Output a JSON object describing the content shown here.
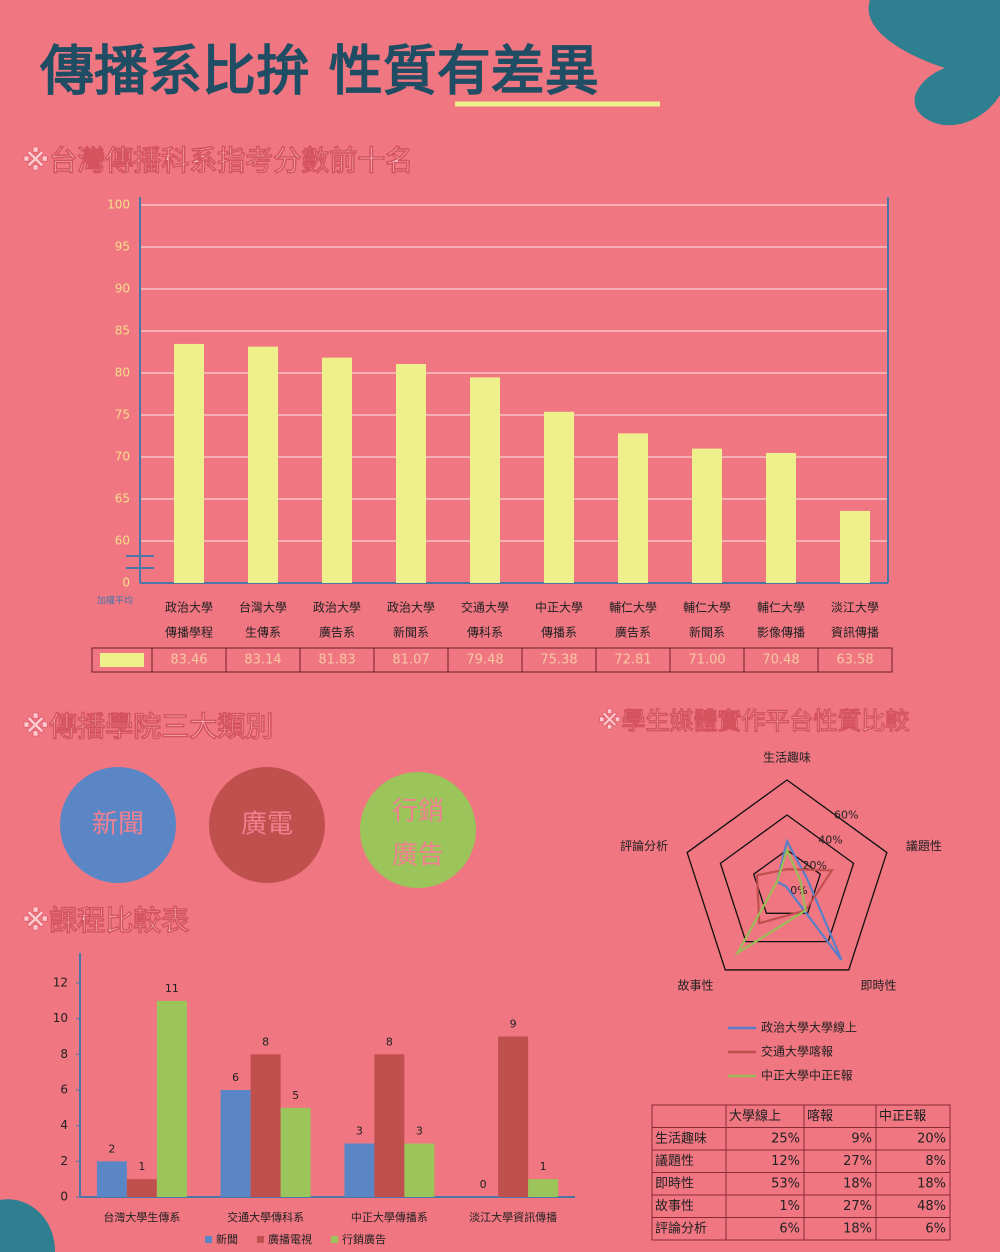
{
  "header": {
    "title": "傳播系比拚 性質有差異"
  },
  "sections": [
    "※台灣傳播科系指考分數前十名",
    "※傳播學院三大類別",
    "※課程比較表",
    "※學生媒體實作平台性質比較"
  ],
  "college_types": [
    [
      "新聞"
    ],
    [
      "廣電"
    ],
    [
      "行銷",
      "廣告"
    ]
  ],
  "chart_data": [
    {
      "type": "bar",
      "categories": [
        [
          "政治大學",
          "傳播學程"
        ],
        [
          "台灣大學",
          "生傳系"
        ],
        [
          "政治大學",
          "廣告系"
        ],
        [
          "政治大學",
          "新聞系"
        ],
        [
          "交通大學",
          "傳科系"
        ],
        [
          "中正大學",
          "傳播系"
        ],
        [
          "輔仁大學",
          "廣告系"
        ],
        [
          "輔仁大學",
          "新聞系"
        ],
        [
          "輔仁大學",
          "影像傳播"
        ],
        [
          "淡江大學",
          "資訊傳播"
        ]
      ],
      "values": [
        83.46,
        83.14,
        81.83,
        81.07,
        79.48,
        75.38,
        72.81,
        71,
        70.48,
        63.58
      ],
      "value_labels": [
        "83.46",
        "83.14",
        "81.83",
        "81.07",
        "79.48",
        "75.38",
        "72.81",
        "71.00",
        "70.48",
        "63.58"
      ],
      "color": "#eef08c",
      "ylim": [
        0,
        100
      ],
      "yticks": [
        0,
        60,
        65,
        70,
        75,
        80,
        85,
        90,
        95,
        100
      ],
      "axis_break": true,
      "grid": true,
      "y_axis_note": "加權平均"
    },
    {
      "type": "grouped_bar",
      "categories": [
        "台灣大學生傳系",
        "交通大學傳科系",
        "中正大學傳播系",
        "淡江大學資訊傳播"
      ],
      "series": [
        {
          "name": "新聞",
          "color": "#5b86c6",
          "values": [
            2,
            6,
            3,
            0
          ]
        },
        {
          "name": "廣播電視",
          "color": "#c0504d",
          "values": [
            1,
            8,
            8,
            9
          ]
        },
        {
          "name": "行銷廣告",
          "color": "#9bc45a",
          "values": [
            11,
            5,
            3,
            1
          ]
        }
      ],
      "ylim": [
        0,
        12
      ],
      "yticks": [
        0,
        2,
        4,
        6,
        8,
        10,
        12
      ]
    },
    {
      "type": "radar",
      "axes": [
        "生活趣味",
        "議題性",
        "即時性",
        "故事性",
        "評論分析"
      ],
      "series": [
        {
          "name": "政治大學大學線上",
          "color": "#5b7fc7",
          "values": [
            25,
            12,
            53,
            1,
            6
          ]
        },
        {
          "name": "交通大學喀報",
          "color": "#c0504d",
          "values": [
            9,
            27,
            18,
            27,
            18
          ]
        },
        {
          "name": "中正大學中正E報",
          "color": "#9bbb59",
          "values": [
            20,
            8,
            18,
            48,
            6
          ]
        }
      ],
      "rlim": [
        0,
        60
      ],
      "rticks": [
        {
          "value": 0,
          "label": "0%"
        },
        {
          "value": 20,
          "label": "20%"
        },
        {
          "value": 40,
          "label": "40%"
        },
        {
          "value": 60,
          "label": "60%"
        }
      ]
    }
  ],
  "table": {
    "header": [
      "大學線上",
      "喀報",
      "中正E報"
    ],
    "rows": [
      [
        "生活趣味",
        "25%",
        "9%",
        "20%"
      ],
      [
        "議題性",
        "12%",
        "27%",
        "8%"
      ],
      [
        "即時性",
        "53%",
        "18%",
        "18%"
      ],
      [
        "故事性",
        "1%",
        "27%",
        "48%"
      ],
      [
        "評論分析",
        "6%",
        "18%",
        "6%"
      ]
    ]
  }
}
